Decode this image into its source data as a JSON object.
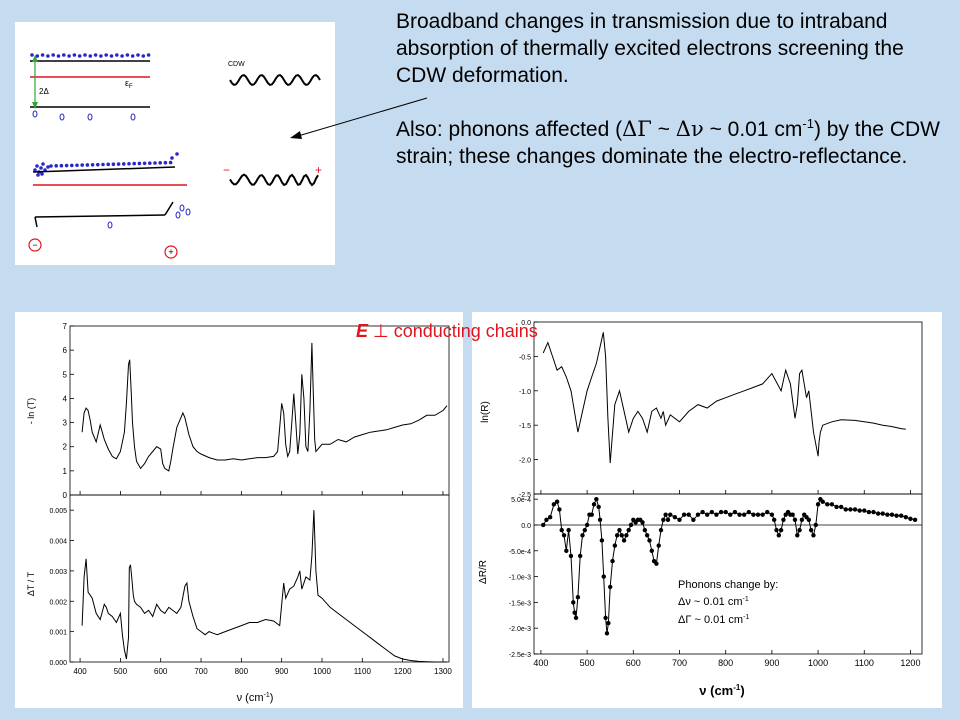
{
  "description": {
    "line1": "Broadband changes in transmission due to intraband absorption of thermally excited electrons screening the CDW deformation.",
    "line2_prefix": "Also: phonons affected (",
    "delta_gamma": "ΔΓ",
    "tilde1": " ~ ",
    "delta_nu": "Δν",
    "approx_value": " ~ 0.01 cm",
    "superscript": "-1",
    "line2_suffix": ") by the CDW strain; these changes dominate the electro-reflectance."
  },
  "orientation_label": {
    "field": "E",
    "perp": " ⊥ ",
    "rest": "conducting chains"
  },
  "diagram": {
    "cdw_label": "CDW",
    "fermi_label": "ε",
    "fermi_sub": "F",
    "gap_label": "2Δ",
    "minus_sign": "−",
    "plus_sign": "+",
    "circle_minus": "−",
    "circle_plus": "+"
  },
  "colors": {
    "background": "#c5dbf0",
    "accent": "#e0141e",
    "electron": "#2828c8"
  },
  "chart_data": [
    {
      "type": "line",
      "ylabel": "- ln (T)",
      "ylim": [
        0,
        7
      ],
      "yticks": [
        "0",
        "1",
        "2",
        "3",
        "4",
        "5",
        "6",
        "7"
      ],
      "xlim": [
        375,
        1315
      ],
      "series": [
        {
          "x": [
            405,
            410,
            415,
            420,
            425,
            430,
            440,
            450,
            455,
            460,
            470,
            480,
            490,
            500,
            510,
            515,
            520,
            523,
            527,
            530,
            535,
            540,
            550,
            560,
            570,
            580,
            590,
            600,
            605,
            610,
            620,
            625,
            630,
            640,
            650,
            655,
            660,
            670,
            680,
            690,
            700,
            720,
            740,
            760,
            780,
            800,
            820,
            840,
            860,
            880,
            890,
            895,
            900,
            905,
            910,
            915,
            920,
            925,
            930,
            935,
            940,
            945,
            950,
            955,
            960,
            965,
            970,
            975,
            978,
            982,
            985,
            990,
            1000,
            1020,
            1040,
            1060,
            1080,
            1100,
            1120,
            1140,
            1160,
            1180,
            1200,
            1220,
            1240,
            1260,
            1280,
            1300,
            1310
          ],
          "y": [
            2.6,
            3.4,
            3.6,
            3.5,
            3.1,
            2.6,
            2.2,
            2.9,
            2.6,
            2.3,
            1.9,
            1.6,
            1.5,
            1.8,
            2.6,
            3.8,
            5.4,
            5.6,
            4.2,
            3.0,
            2.0,
            1.4,
            1.1,
            1.3,
            1.6,
            1.8,
            2.0,
            1.9,
            1.3,
            1.1,
            1.0,
            1.4,
            1.9,
            2.8,
            3.2,
            3.4,
            3.2,
            2.5,
            2.0,
            1.8,
            1.7,
            1.55,
            1.45,
            1.45,
            1.5,
            1.45,
            1.5,
            1.55,
            1.55,
            1.6,
            1.8,
            2.8,
            3.8,
            3.4,
            2.1,
            1.6,
            1.8,
            3.0,
            4.2,
            3.0,
            1.7,
            2.5,
            5.0,
            4.0,
            2.0,
            1.8,
            3.5,
            6.3,
            4.5,
            2.3,
            1.8,
            1.9,
            2.1,
            2.1,
            2.3,
            2.2,
            2.4,
            2.5,
            2.6,
            2.65,
            2.7,
            2.8,
            2.9,
            2.95,
            3.1,
            3.3,
            3.3,
            3.5,
            3.7
          ]
        }
      ]
    },
    {
      "type": "line",
      "ylabel": "ΔT / T",
      "ylim": [
        0,
        0.0055
      ],
      "yticks": [
        "0.000",
        "0.001",
        "0.002",
        "0.003",
        "0.004",
        "0.005"
      ],
      "xlim": [
        375,
        1315
      ],
      "xticks": [
        400,
        500,
        600,
        700,
        800,
        900,
        1000,
        1100,
        1200,
        1300
      ],
      "xlabel_prefix": "ν (cm",
      "xlabel_sup": "-1",
      "xlabel_suffix": ")",
      "series": [
        {
          "x": [
            405,
            410,
            415,
            420,
            425,
            430,
            440,
            450,
            460,
            465,
            470,
            480,
            490,
            500,
            505,
            510,
            515,
            520,
            522,
            525,
            528,
            532,
            535,
            540,
            550,
            560,
            570,
            580,
            590,
            600,
            610,
            620,
            630,
            640,
            650,
            660,
            665,
            670,
            680,
            690,
            700,
            710,
            720,
            730,
            740,
            760,
            780,
            800,
            820,
            840,
            860,
            880,
            895,
            900,
            905,
            910,
            920,
            930,
            940,
            945,
            950,
            955,
            960,
            970,
            975,
            980,
            985,
            990,
            1000,
            1020,
            1040,
            1060,
            1080,
            1100,
            1120,
            1140,
            1160,
            1180,
            1200,
            1220,
            1240,
            1260,
            1280,
            1300,
            1310
          ],
          "y": [
            0.0012,
            0.0028,
            0.0034,
            0.0023,
            0.0022,
            0.0021,
            0.0016,
            0.0014,
            0.0019,
            0.0018,
            0.0016,
            0.0015,
            0.0013,
            0.0016,
            0.0009,
            0.0004,
            0.0001,
            0.0008,
            0.0031,
            0.0032,
            0.0028,
            0.0022,
            0.002,
            0.0019,
            0.0018,
            0.0016,
            0.0017,
            0.0015,
            0.0019,
            0.0017,
            0.0016,
            0.0018,
            0.0017,
            0.0016,
            0.0018,
            0.0025,
            0.0026,
            0.002,
            0.0015,
            0.0011,
            0.001,
            0.0009,
            0.001,
            0.00095,
            0.0009,
            0.001,
            0.0011,
            0.0012,
            0.0013,
            0.0013,
            0.0014,
            0.00135,
            0.0012,
            0.0019,
            0.0026,
            0.0021,
            0.0024,
            0.0025,
            0.0028,
            0.003,
            0.0024,
            0.0026,
            0.0028,
            0.0027,
            0.0035,
            0.005,
            0.003,
            0.0022,
            0.0021,
            0.0018,
            0.0016,
            0.0014,
            0.0012,
            0.001,
            0.0008,
            0.0006,
            0.0004,
            0.0002,
            0.0001,
            5e-05,
            2e-05,
            1e-05,
            0.0,
            0.0,
            0.0
          ]
        }
      ]
    },
    {
      "type": "line",
      "ylabel": "ln(R)",
      "ylim": [
        -2.5,
        0
      ],
      "yticks": [
        "-2.5",
        "-2.0",
        "-1.5",
        "-1.0",
        "-0.5",
        "0.0"
      ],
      "xlim": [
        385,
        1225
      ],
      "series": [
        {
          "x": [
            405,
            415,
            425,
            435,
            445,
            455,
            465,
            475,
            480,
            490,
            500,
            510,
            520,
            530,
            535,
            540,
            545,
            550,
            560,
            570,
            580,
            590,
            600,
            610,
            620,
            630,
            640,
            650,
            660,
            665,
            670,
            680,
            700,
            720,
            740,
            760,
            780,
            800,
            820,
            840,
            860,
            880,
            900,
            920,
            930,
            940,
            950,
            955,
            960,
            965,
            970,
            975,
            980,
            990,
            1000,
            1002,
            1005,
            1010,
            1030,
            1050,
            1080,
            1100,
            1120,
            1140,
            1160,
            1180,
            1190
          ],
          "y": [
            -0.45,
            -0.3,
            -0.5,
            -0.7,
            -0.65,
            -0.8,
            -1.0,
            -1.4,
            -1.6,
            -1.3,
            -1.0,
            -0.8,
            -0.6,
            -0.3,
            -0.15,
            -0.5,
            -1.4,
            -2.05,
            -1.2,
            -1.0,
            -1.3,
            -1.6,
            -1.4,
            -1.3,
            -1.4,
            -1.6,
            -1.3,
            -1.25,
            -1.4,
            -1.3,
            -1.5,
            -1.35,
            -1.45,
            -1.3,
            -1.2,
            -1.25,
            -1.15,
            -1.1,
            -1.05,
            -1.0,
            -0.95,
            -0.9,
            -0.75,
            -1.0,
            -0.7,
            -0.9,
            -1.4,
            -1.2,
            -0.75,
            -0.7,
            -0.9,
            -1.1,
            -1.0,
            -1.6,
            -1.95,
            -1.75,
            -1.6,
            -1.5,
            -1.45,
            -1.42,
            -1.43,
            -1.45,
            -1.47,
            -1.5,
            -1.52,
            -1.55,
            -1.56
          ]
        }
      ]
    },
    {
      "type": "scatter",
      "ylabel": "ΔR/R",
      "ylim": [
        -0.0025,
        0.0006
      ],
      "yticks": [
        "-2.5e-3",
        "-2.0e-3",
        "-1.5e-3",
        "-1.0e-3",
        "-5.0e-4",
        "0.0",
        "5.0e-4"
      ],
      "xlim": [
        385,
        1225
      ],
      "xticks": [
        400,
        500,
        600,
        700,
        800,
        900,
        1000,
        1100,
        1200
      ],
      "xlabel_prefix": "ν (cm",
      "xlabel_sup": "-1",
      "xlabel_suffix": ")",
      "series": [
        {
          "x": [
            405,
            412,
            420,
            428,
            435,
            440,
            445,
            450,
            455,
            460,
            465,
            470,
            473,
            476,
            480,
            485,
            490,
            495,
            500,
            505,
            510,
            515,
            520,
            525,
            528,
            532,
            536,
            540,
            543,
            546,
            550,
            555,
            560,
            565,
            570,
            575,
            580,
            585,
            590,
            595,
            600,
            605,
            610,
            615,
            620,
            625,
            630,
            635,
            640,
            645,
            650,
            655,
            660,
            665,
            670,
            675,
            680,
            690,
            700,
            710,
            720,
            730,
            740,
            750,
            760,
            770,
            780,
            790,
            800,
            810,
            820,
            830,
            840,
            850,
            860,
            870,
            880,
            890,
            900,
            905,
            910,
            915,
            920,
            925,
            930,
            935,
            940,
            945,
            950,
            955,
            960,
            965,
            970,
            975,
            980,
            985,
            990,
            995,
            1000,
            1005,
            1010,
            1020,
            1030,
            1040,
            1050,
            1060,
            1070,
            1080,
            1090,
            1100,
            1110,
            1120,
            1130,
            1140,
            1150,
            1160,
            1170,
            1180,
            1190,
            1200,
            1210
          ],
          "y": [
            0.0,
            0.0001,
            0.00015,
            0.0004,
            0.00045,
            0.0003,
            -0.0001,
            -0.0002,
            -0.0005,
            -0.0001,
            -0.0006,
            -0.0015,
            -0.0017,
            -0.0018,
            -0.0014,
            -0.0006,
            -0.0002,
            -0.0001,
            0.0,
            0.0002,
            0.0002,
            0.0004,
            0.0005,
            0.00035,
            0.0001,
            -0.0003,
            -0.001,
            -0.0018,
            -0.0021,
            -0.0019,
            -0.0012,
            -0.0007,
            -0.0004,
            -0.0002,
            -0.0001,
            -0.0002,
            -0.0003,
            -0.0002,
            -0.0001,
            0.0,
            0.0001,
            5e-05,
            0.0001,
            0.0001,
            5e-05,
            -0.0001,
            -0.0002,
            -0.0003,
            -0.0005,
            -0.0007,
            -0.00075,
            -0.0004,
            -0.0001,
            0.0001,
            0.0002,
            0.0001,
            0.0002,
            0.00015,
            0.0001,
            0.0002,
            0.0002,
            0.0001,
            0.0002,
            0.00025,
            0.0002,
            0.00025,
            0.0002,
            0.00025,
            0.00025,
            0.0002,
            0.00025,
            0.0002,
            0.0002,
            0.00025,
            0.0002,
            0.0002,
            0.0002,
            0.00025,
            0.0002,
            0.0001,
            -0.0001,
            -0.0002,
            -0.0001,
            0.0001,
            0.0002,
            0.00025,
            0.0002,
            0.0002,
            0.0001,
            -0.0002,
            -0.0001,
            0.0001,
            0.0002,
            0.00015,
            0.0001,
            -0.0001,
            -0.0002,
            0.0,
            0.0004,
            0.0005,
            0.00045,
            0.0004,
            0.0004,
            0.00035,
            0.00035,
            0.0003,
            0.0003,
            0.0003,
            0.00028,
            0.00028,
            0.00025,
            0.00025,
            0.00022,
            0.00022,
            0.0002,
            0.0002,
            0.00018,
            0.00018,
            0.00015,
            0.00012,
            0.0001
          ]
        }
      ],
      "annotation": {
        "title": "Phonons change by:",
        "line1_sym": "Δν",
        "line1_text": " ~ 0.01 cm",
        "line2_sym": "ΔΓ",
        "line2_text": " ~ 0.01 cm",
        "sup": "-1"
      }
    }
  ]
}
